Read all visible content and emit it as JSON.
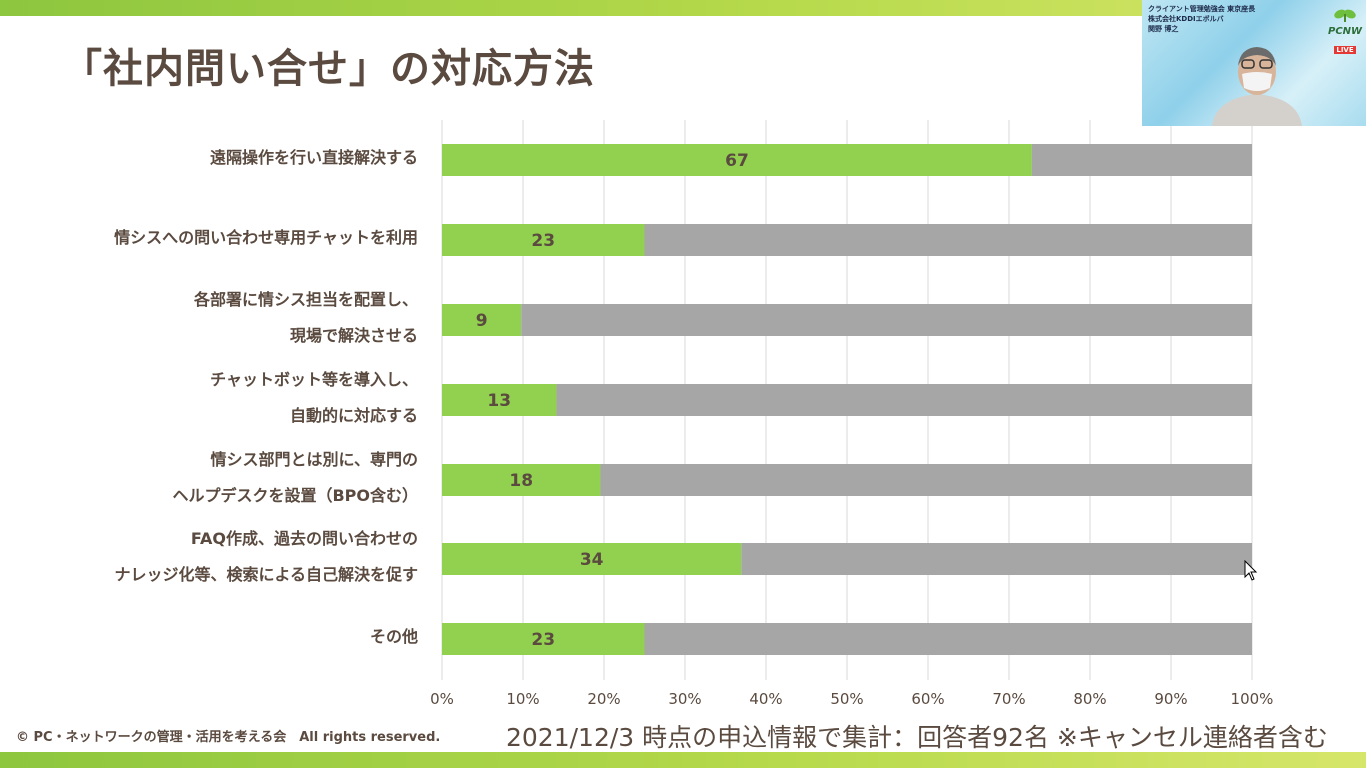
{
  "slide": {
    "title": "「社内問い合せ」の対応方法",
    "footer_left": "© PC・ネットワークの管理・活用を考える会　All rights reserved.",
    "footer_right": "2021/12/3 時点の申込情報で集計：回答者92名 ※キャンセル連絡者含む"
  },
  "webcam": {
    "caption_lines": [
      "クライアント管理勉強会 東京座長",
      "株式会社KDDIエボルバ",
      "関野 博之"
    ],
    "logo_text": "PCNW",
    "live_label": "LIVE"
  },
  "categories": [
    [
      "遠隔操作を行い直接解決する"
    ],
    [
      "情シスへの問い合わせ専用チャットを利用"
    ],
    [
      "各部署に情シス担当を配置し、",
      "現場で解決させる"
    ],
    [
      "チャットボット等を導入し、",
      "自動的に対応する"
    ],
    [
      "情シス部門とは別に、専門の",
      "ヘルプデスクを設置（BPO含む）"
    ],
    [
      "FAQ作成、過去の問い合わせの",
      "ナレッジ化等、検索による自己解決を促す"
    ],
    [
      "その他"
    ]
  ],
  "chart_data": {
    "type": "bar",
    "orientation": "horizontal",
    "stacked": "100%",
    "total": 92,
    "categories": [
      "遠隔操作を行い直接解決する",
      "情シスへの問い合わせ専用チャットを利用",
      "各部署に情シス担当を配置し、現場で解決させる",
      "チャットボット等を導入し、自動的に対応する",
      "情シス部門とは別に、専門のヘルプデスクを設置（BPO含む）",
      "FAQ作成、過去の問い合わせのナレッジ化等、検索による自己解決を促す",
      "その他"
    ],
    "series": [
      {
        "values": [
          67,
          23,
          9,
          13,
          18,
          34,
          23
        ],
        "color": "#92d050"
      },
      {
        "values": [
          25,
          69,
          83,
          79,
          74,
          58,
          69
        ],
        "color": "#a6a6a6"
      }
    ],
    "data_labels": [
      "67",
      "23",
      "9",
      "13",
      "18",
      "34",
      "23"
    ],
    "x_ticks": [
      "0%",
      "10%",
      "20%",
      "30%",
      "40%",
      "50%",
      "60%",
      "70%",
      "80%",
      "90%",
      "100%"
    ],
    "xlim": [
      0,
      100
    ],
    "grid": true,
    "label_color": "#5a4a3f",
    "gridline_color": "#d9d9d9"
  }
}
